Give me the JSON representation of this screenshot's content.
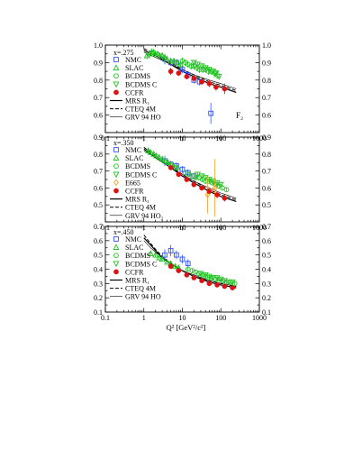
{
  "chart_data": {
    "type": "scatter",
    "xlabel": "Q² [GeV²/c²]",
    "xscale": "log",
    "xlim": [
      0.1,
      1000
    ],
    "xticks": [
      "0.1",
      "1",
      "10",
      "100",
      "1000"
    ],
    "annotation": "F₂",
    "colors": {
      "NMC": "#3050ff",
      "SLAC": "#22c222",
      "BCDMS": "#22c222",
      "BCDMS C": "#22c222",
      "E665": "#f0a020",
      "CCFR": "#e01010",
      "theory": "#000000",
      "frame": "#000000"
    },
    "legend_labels": {
      "NMC": "NMC",
      "SLAC": "SLAC",
      "BCDMS": "BCDMS",
      "BCDMS C": "BCDMS C",
      "E665": "E665",
      "CCFR": "CCFR",
      "MRS": "MRS R₁",
      "CTEQ": "CTEQ 4M",
      "GRV": "GRV 94 HO",
      "GRV_sub": "GRV 94 HO₂"
    },
    "panels": [
      {
        "label": "x=.275",
        "ylim": [
          0.5,
          1.0
        ],
        "yticks": [
          "0.6",
          "0.7",
          "0.8",
          "0.9",
          "1.0"
        ],
        "legend": [
          "NMC",
          "SLAC",
          "BCDMS",
          "BCDMS C",
          "CCFR",
          "MRS",
          "CTEQ",
          "GRV"
        ],
        "series": [
          {
            "name": "NMC",
            "marker": "square",
            "x": [
              3.5,
              5,
              7,
              10,
              14,
              20,
              28,
              55
            ],
            "y": [
              0.92,
              0.9,
              0.9,
              0.86,
              0.83,
              0.8,
              0.79,
              0.61
            ],
            "err": [
              0.03,
              0.02,
              0.02,
              0.02,
              0.02,
              0.02,
              0.02,
              0.06
            ]
          },
          {
            "name": "SLAC",
            "marker": "triangle-up",
            "x": [
              1.2,
              1.4,
              1.6,
              1.8,
              2.0,
              2.3,
              2.6,
              3.0,
              3.5,
              4.0,
              5.0,
              6.0,
              7.5,
              9.0
            ],
            "y": [
              0.94,
              0.95,
              0.96,
              0.96,
              0.95,
              0.95,
              0.94,
              0.94,
              0.93,
              0.92,
              0.91,
              0.91,
              0.9,
              0.89
            ],
            "err": [
              0.02,
              0.02,
              0.02,
              0.015,
              0.015,
              0.015,
              0.015,
              0.015,
              0.015,
              0.015,
              0.015,
              0.015,
              0.015,
              0.015
            ]
          },
          {
            "name": "BCDMS",
            "marker": "circle",
            "x": [
              10,
              12,
              14,
              17,
              20,
              24,
              28,
              34,
              40,
              48,
              57,
              68,
              80
            ],
            "y": [
              0.91,
              0.9,
              0.89,
              0.88,
              0.88,
              0.87,
              0.86,
              0.86,
              0.86,
              0.85,
              0.85,
              0.84,
              0.83
            ],
            "err": [
              0.02,
              0.02,
              0.02,
              0.02,
              0.02,
              0.02,
              0.02,
              0.02,
              0.02,
              0.02,
              0.02,
              0.025,
              0.025
            ]
          },
          {
            "name": "BCDMS C",
            "marker": "triangle-down",
            "x": [
              20,
              25,
              32,
              40,
              50,
              63,
              75,
              90
            ],
            "y": [
              0.9,
              0.89,
              0.88,
              0.87,
              0.86,
              0.85,
              0.84,
              0.82
            ],
            "err": [
              0.015,
              0.015,
              0.015,
              0.015,
              0.015,
              0.015,
              0.015,
              0.015
            ]
          },
          {
            "name": "CCFR",
            "marker": "filled-circle",
            "x": [
              5,
              8,
              13,
              20,
              32,
              50,
              75,
              125
            ],
            "y": [
              0.85,
              0.84,
              0.82,
              0.81,
              0.79,
              0.78,
              0.76,
              0.75
            ],
            "err": [
              0.02,
              0.015,
              0.015,
              0.015,
              0.015,
              0.02,
              0.02,
              0.03
            ]
          }
        ],
        "curves": [
          {
            "name": "MRS",
            "x": [
              1,
              2,
              5,
              10,
              20,
              50,
              100,
              250
            ],
            "y": [
              0.97,
              0.94,
              0.89,
              0.85,
              0.82,
              0.78,
              0.76,
              0.73
            ]
          },
          {
            "name": "CTEQ",
            "x": [
              1,
              2,
              5,
              10,
              20,
              50,
              100,
              250
            ],
            "y": [
              0.98,
              0.95,
              0.9,
              0.86,
              0.83,
              0.79,
              0.77,
              0.74
            ]
          },
          {
            "name": "GRV",
            "x": [
              1,
              2,
              5,
              10,
              20,
              50,
              100,
              250
            ],
            "y": [
              0.96,
              0.93,
              0.89,
              0.86,
              0.83,
              0.8,
              0.78,
              0.75
            ]
          }
        ]
      },
      {
        "label": "x=.350",
        "ylim": [
          0.4,
          0.9
        ],
        "yticks": [
          "0.5",
          "0.6",
          "0.7",
          "0.8",
          "0.9"
        ],
        "legend": [
          "NMC",
          "SLAC",
          "BCDMS",
          "BCDMS C",
          "E665",
          "CCFR",
          "MRS",
          "CTEQ",
          "GRV_sub"
        ],
        "series": [
          {
            "name": "NMC",
            "marker": "square",
            "x": [
              3.5,
              5,
              7,
              10,
              14,
              20
            ],
            "y": [
              0.76,
              0.74,
              0.73,
              0.71,
              0.69,
              0.67
            ],
            "err": [
              0.03,
              0.02,
              0.02,
              0.02,
              0.02,
              0.02
            ]
          },
          {
            "name": "SLAC",
            "marker": "triangle-up",
            "x": [
              1.3,
              1.5,
              1.8,
              2.1,
              2.5,
              3.0,
              3.5,
              4.2,
              5.0,
              6.0,
              7.5
            ],
            "y": [
              0.82,
              0.81,
              0.8,
              0.79,
              0.78,
              0.77,
              0.76,
              0.75,
              0.74,
              0.73,
              0.72
            ],
            "err": [
              0.015,
              0.015,
              0.015,
              0.015,
              0.015,
              0.015,
              0.015,
              0.015,
              0.015,
              0.015,
              0.015
            ]
          },
          {
            "name": "BCDMS",
            "marker": "circle",
            "x": [
              12,
              15,
              18,
              22,
              27,
              33,
              40,
              50,
              60,
              75,
              90,
              110,
              140
            ],
            "y": [
              0.69,
              0.68,
              0.67,
              0.66,
              0.66,
              0.65,
              0.64,
              0.64,
              0.63,
              0.62,
              0.61,
              0.6,
              0.59
            ],
            "err": [
              0.015,
              0.015,
              0.015,
              0.015,
              0.015,
              0.015,
              0.015,
              0.015,
              0.015,
              0.015,
              0.015,
              0.015,
              0.015
            ]
          },
          {
            "name": "BCDMS C",
            "marker": "triangle-down",
            "x": [
              25,
              32,
              40,
              50,
              63,
              80,
              100
            ],
            "y": [
              0.68,
              0.67,
              0.66,
              0.65,
              0.64,
              0.63,
              0.62
            ],
            "err": [
              0.015,
              0.015,
              0.015,
              0.015,
              0.015,
              0.015,
              0.015
            ]
          },
          {
            "name": "E665",
            "marker": "diamond",
            "x": [
              45,
              70
            ],
            "y": [
              0.56,
              0.6
            ],
            "err": [
              0.11,
              0.17
            ]
          },
          {
            "name": "CCFR",
            "marker": "filled-circle",
            "x": [
              5,
              8,
              13,
              20,
              32,
              50,
              80,
              125
            ],
            "y": [
              0.72,
              0.68,
              0.65,
              0.62,
              0.6,
              0.58,
              0.56,
              0.54
            ],
            "err": [
              0.015,
              0.015,
              0.015,
              0.015,
              0.015,
              0.015,
              0.02,
              0.02
            ]
          }
        ],
        "curves": [
          {
            "name": "MRS",
            "x": [
              1,
              2,
              5,
              10,
              20,
              50,
              100,
              250
            ],
            "y": [
              0.83,
              0.78,
              0.72,
              0.67,
              0.63,
              0.58,
              0.55,
              0.52
            ]
          },
          {
            "name": "CTEQ",
            "x": [
              1,
              2,
              5,
              10,
              20,
              50,
              100,
              250
            ],
            "y": [
              0.84,
              0.79,
              0.73,
              0.68,
              0.64,
              0.59,
              0.56,
              0.53
            ]
          },
          {
            "name": "GRV",
            "x": [
              1,
              2,
              5,
              10,
              20,
              50,
              100,
              250
            ],
            "y": [
              0.82,
              0.78,
              0.72,
              0.68,
              0.64,
              0.6,
              0.57,
              0.54
            ]
          }
        ]
      },
      {
        "label": "x=.450",
        "ylim": [
          0.1,
          0.7
        ],
        "yticks": [
          "0.1",
          "0.2",
          "0.3",
          "0.4",
          "0.5",
          "0.6",
          "0.7"
        ],
        "legend": [
          "NMC",
          "SLAC",
          "BCDMS",
          "BCDMS C",
          "CCFR",
          "MRS",
          "CTEQ",
          "GRV"
        ],
        "series": [
          {
            "name": "NMC",
            "marker": "square",
            "x": [
              3.5,
              5,
              7,
              10,
              14
            ],
            "y": [
              0.5,
              0.53,
              0.5,
              0.47,
              0.44
            ],
            "err": [
              0.04,
              0.04,
              0.03,
              0.03,
              0.03
            ]
          },
          {
            "name": "SLAC",
            "marker": "triangle-up",
            "x": [
              1.5,
              2.0,
              2.5,
              3.0,
              4.0,
              5.0,
              6.5,
              8.0
            ],
            "y": [
              0.51,
              0.5,
              0.48,
              0.47,
              0.45,
              0.44,
              0.42,
              0.41
            ],
            "err": [
              0.015,
              0.015,
              0.015,
              0.015,
              0.015,
              0.015,
              0.015,
              0.015
            ]
          },
          {
            "name": "BCDMS",
            "marker": "circle",
            "x": [
              14,
              18,
              22,
              27,
              33,
              40,
              50,
              60,
              75,
              90,
              110,
              140,
              180,
              230
            ],
            "y": [
              0.4,
              0.39,
              0.38,
              0.37,
              0.36,
              0.35,
              0.34,
              0.34,
              0.33,
              0.33,
              0.32,
              0.31,
              0.31,
              0.3
            ],
            "err": [
              0.015,
              0.015,
              0.015,
              0.015,
              0.015,
              0.015,
              0.015,
              0.015,
              0.015,
              0.015,
              0.015,
              0.015,
              0.015,
              0.015
            ]
          },
          {
            "name": "BCDMS C",
            "marker": "triangle-down",
            "x": [
              30,
              40,
              50,
              63,
              80,
              100,
              125,
              160,
              200
            ],
            "y": [
              0.37,
              0.36,
              0.35,
              0.34,
              0.34,
              0.33,
              0.32,
              0.31,
              0.31
            ],
            "err": [
              0.012,
              0.012,
              0.012,
              0.012,
              0.012,
              0.012,
              0.012,
              0.012,
              0.012
            ]
          },
          {
            "name": "CCFR",
            "marker": "filled-circle",
            "x": [
              5,
              8,
              13,
              20,
              32,
              50,
              80,
              125,
              200
            ],
            "y": [
              0.42,
              0.39,
              0.36,
              0.34,
              0.32,
              0.3,
              0.29,
              0.28,
              0.27
            ],
            "err": [
              0.015,
              0.015,
              0.012,
              0.012,
              0.012,
              0.012,
              0.012,
              0.012,
              0.015
            ]
          }
        ],
        "curves": [
          {
            "name": "MRS",
            "x": [
              1,
              1.5,
              2,
              3,
              5,
              10,
              20,
              50,
              100,
              250
            ],
            "y": [
              0.62,
              0.57,
              0.53,
              0.48,
              0.44,
              0.39,
              0.35,
              0.31,
              0.29,
              0.27
            ]
          },
          {
            "name": "CTEQ",
            "x": [
              1,
              1.5,
              2,
              3,
              5,
              10,
              20,
              50,
              100,
              250
            ],
            "y": [
              0.64,
              0.58,
              0.54,
              0.49,
              0.44,
              0.39,
              0.35,
              0.32,
              0.3,
              0.28
            ]
          },
          {
            "name": "GRV",
            "x": [
              1,
              1.5,
              2,
              3,
              5,
              10,
              20,
              50,
              100,
              250
            ],
            "y": [
              0.6,
              0.55,
              0.52,
              0.48,
              0.44,
              0.39,
              0.36,
              0.32,
              0.3,
              0.28
            ]
          }
        ]
      }
    ]
  }
}
